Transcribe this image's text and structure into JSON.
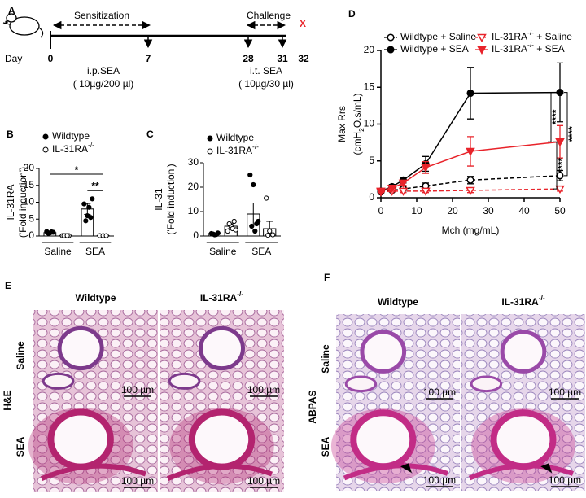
{
  "panel_labels": [
    "A",
    "B",
    "C",
    "D",
    "E",
    "F"
  ],
  "panel_a": {
    "phase1": "Sensitization",
    "phase2": "Challenge",
    "mark": "X",
    "day_label": "Day",
    "days": [
      0,
      7,
      28,
      31,
      32
    ],
    "route1": "i.p.SEA",
    "dose1": "( 10µg/200 µl)",
    "route2": "i.t. SEA",
    "dose2": "( 10µg/30 µl)"
  },
  "chart_data": [
    {
      "type": "dot-bar",
      "ylabel": "IL-31RA",
      "ylabel2": "('Fold induction')",
      "categories": [
        "Saline",
        "SEA"
      ],
      "ylim": [
        0,
        20
      ],
      "yticks": [
        0,
        5,
        10,
        15,
        20
      ],
      "series": [
        {
          "name": "Wildtype",
          "color": "#000000",
          "marker": "filled",
          "values": [
            1.0,
            8.0
          ],
          "errors": [
            0.15,
            1.6
          ],
          "points": [
            [
              1.3,
              0.9,
              1.1,
              0.8,
              1.2
            ],
            [
              9.5,
              6.0,
              5.5,
              4.5,
              8.5,
              11.0
            ]
          ]
        },
        {
          "name": "IL-31RA",
          "name_sup": "-/-",
          "color": "#000000",
          "marker": "open",
          "values": [
            0.1,
            0.1
          ],
          "errors": [
            0,
            0
          ],
          "points": [
            [
              0.1,
              0.1,
              0.1,
              0.1,
              0.1
            ],
            [
              0.1,
              0.1,
              0.1
            ]
          ]
        }
      ],
      "annotations": [
        "*",
        "**"
      ]
    },
    {
      "type": "dot-bar",
      "ylabel": "IL-31",
      "ylabel2": "('Fold induction')",
      "categories": [
        "Saline",
        "SEA"
      ],
      "ylim": [
        0,
        30
      ],
      "yticks": [
        0,
        10,
        20,
        30
      ],
      "series": [
        {
          "name": "Wildtype",
          "color": "#000000",
          "marker": "filled",
          "values": [
            1.0,
            9.0
          ],
          "errors": [
            0.3,
            4.5
          ],
          "points": [
            [
              1.0,
              0.5,
              1.2,
              0.8,
              0.6
            ],
            [
              25.0,
              21.0,
              5.0,
              4.0,
              2.0,
              6.0
            ]
          ]
        },
        {
          "name": "IL-31RA",
          "name_sup": "-/-",
          "color": "#000000",
          "marker": "open",
          "values": [
            4.0,
            3.0
          ],
          "errors": [
            1.0,
            3.0
          ],
          "points": [
            [
              2.0,
              4.0,
              6.0,
              5.0,
              3.0,
              2.5
            ],
            [
              15.5,
              2.0,
              0.5,
              0.3
            ]
          ]
        }
      ]
    },
    {
      "type": "line",
      "xlabel": "Mch (mg/mL)",
      "ylabel": "Max Rrs",
      "ylabel2": {
        "pre": "(cmH",
        "sub": "2",
        "post": "O.s/mL)"
      },
      "x": [
        0,
        3.125,
        6.25,
        12.5,
        25,
        50
      ],
      "xlim": [
        0,
        50
      ],
      "xticks": [
        0,
        10,
        20,
        30,
        40,
        50
      ],
      "ylim": [
        0,
        20
      ],
      "yticks": [
        0,
        5,
        10,
        15,
        20
      ],
      "series": [
        {
          "name": "Wildtype + Saline",
          "color": "#000000",
          "marker": "circle-open",
          "dashed": true,
          "values": [
            0.8,
            1.0,
            1.2,
            1.6,
            2.4,
            3.0
          ],
          "errors": [
            0.2,
            0.2,
            0.3,
            0.4,
            0.5,
            0.7
          ]
        },
        {
          "name": "Wildtype + SEA",
          "color": "#000000",
          "marker": "circle-filled",
          "dashed": false,
          "values": [
            0.9,
            1.5,
            2.4,
            4.6,
            14.2,
            14.3
          ],
          "errors": [
            0.2,
            0.3,
            0.4,
            1.0,
            3.5,
            4.0
          ]
        },
        {
          "name": "IL-31RA",
          "name_sup": "-/-",
          "name_suffix": " + Saline",
          "color": "#e8232a",
          "marker": "triangle-open",
          "dashed": true,
          "values": [
            0.8,
            0.9,
            0.9,
            0.9,
            1.0,
            1.2
          ],
          "errors": [
            0.1,
            0.1,
            0.2,
            0.2,
            0.3,
            0.3
          ]
        },
        {
          "name": "IL-31RA",
          "name_sup": "-/-",
          "name_suffix": " + SEA",
          "color": "#e8232a",
          "marker": "triangle-filled",
          "dashed": false,
          "values": [
            0.9,
            1.3,
            2.0,
            4.1,
            6.3,
            7.6
          ],
          "errors": [
            0.2,
            0.3,
            0.3,
            0.8,
            2.0,
            2.2
          ]
        }
      ],
      "annotations": [
        "****",
        "****",
        "****"
      ]
    }
  ],
  "panel_e": {
    "columns": [
      {
        "text": "Wildtype"
      },
      {
        "text": "IL-31RA",
        "sup": "-/-"
      }
    ],
    "rows": [
      "Saline",
      "SEA"
    ],
    "stain": "H&E",
    "scale_bars": [
      "100 µm",
      "100 µm",
      "100 µm",
      "100 µm"
    ]
  },
  "panel_f": {
    "columns": [
      {
        "text": "Wildtype"
      },
      {
        "text": "IL-31RA",
        "sup": "-/-"
      }
    ],
    "rows": [
      "Saline",
      "SEA"
    ],
    "stain": "ABPAS",
    "scale_bars": [
      "100 µm",
      "100 µm",
      "100 µm",
      "100 µm"
    ]
  }
}
